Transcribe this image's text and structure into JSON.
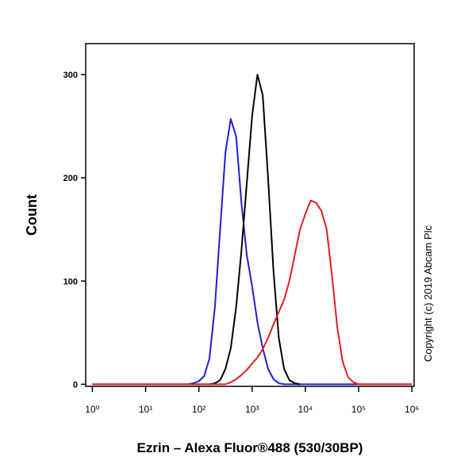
{
  "chart_data": {
    "type": "line",
    "x_label": "Ezrin – Alexa Fluor®488 (530/30BP)",
    "y_label": "Count",
    "annotation": "Copyright (c) 2019 Abcam Plc",
    "log_x": true,
    "x": [
      1,
      63,
      79,
      100,
      126,
      158,
      200,
      251,
      316,
      398,
      501,
      631,
      794,
      1000,
      1259,
      1585,
      1995,
      2512,
      3162,
      3981,
      5012,
      6310,
      7943,
      10000,
      12589,
      15849,
      19953,
      25119,
      31623,
      39811,
      50119,
      63096,
      79433,
      100000,
      125893,
      1000000
    ],
    "series": [
      {
        "color": "#1f1fd0",
        "values": [
          0,
          0,
          1,
          3,
          8,
          25,
          75,
          150,
          225,
          257,
          240,
          175,
          125,
          95,
          60,
          35,
          15,
          5,
          1,
          0,
          0,
          0,
          0,
          0,
          0,
          0,
          0,
          0,
          0,
          0,
          0,
          0,
          0,
          0,
          0,
          0
        ]
      },
      {
        "color": "#000000",
        "values": [
          null,
          0,
          0,
          0,
          0,
          0,
          1,
          4,
          15,
          35,
          75,
          130,
          195,
          260,
          300,
          280,
          200,
          110,
          45,
          15,
          4,
          1,
          0,
          null,
          null,
          null,
          null,
          null,
          null,
          null,
          null,
          null,
          null,
          null,
          null,
          null
        ]
      },
      {
        "color": "#e02020",
        "values": [
          0,
          0,
          0,
          0,
          0,
          0,
          0,
          0,
          0,
          2,
          5,
          9,
          14,
          20,
          26,
          34,
          45,
          58,
          70,
          82,
          100,
          125,
          150,
          165,
          178,
          176,
          168,
          150,
          105,
          55,
          22,
          7,
          2,
          0,
          0,
          0
        ]
      }
    ],
    "xlim": [
      0.75,
      1100000
    ],
    "ylim": [
      -2,
      330
    ],
    "xticks": [
      {
        "value": 1,
        "label": "10⁰"
      },
      {
        "value": 10,
        "label": "10¹"
      },
      {
        "value": 100,
        "label": "10²"
      },
      {
        "value": 1000,
        "label": "10³"
      },
      {
        "value": 10000,
        "label": "10⁴"
      },
      {
        "value": 100000,
        "label": "10⁵"
      },
      {
        "value": 1000000,
        "label": "10⁶"
      }
    ],
    "yticks": [
      0,
      100,
      200,
      300
    ]
  }
}
